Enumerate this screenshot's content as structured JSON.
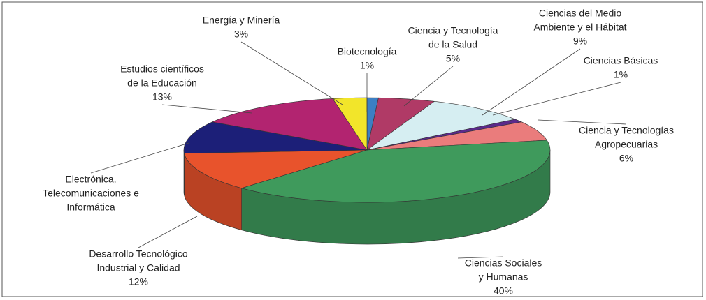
{
  "chart_data": {
    "type": "pie3d",
    "categories": [
      [
        "Biotecnología"
      ],
      [
        "Ciencia y Tecnología",
        "de la Salud"
      ],
      [
        "Ciencias del Medio",
        "Ambiente y el Hábitat"
      ],
      [
        "Ciencias Básicas"
      ],
      [
        "Ciencia y Tecnologías",
        "Agropecuarias"
      ],
      [
        "Ciencias Sociales",
        "y Humanas"
      ],
      [
        "Desarrollo Tecnológico",
        "Industrial y Calidad"
      ],
      [
        "Electrónica,",
        "Telecomunicaciones e",
        "Informática"
      ],
      [
        "Estudios científicos",
        "de la Educación"
      ],
      [
        "Energía y Minería"
      ]
    ],
    "values": [
      1,
      5,
      9,
      1,
      6,
      40,
      12,
      10,
      13,
      3
    ],
    "value_labels": [
      "1%",
      "5%",
      "9%",
      "1%",
      "6%",
      "40%",
      "12%",
      null,
      "13%",
      "3%"
    ],
    "colors": [
      "#3c7fc4",
      "#b03a66",
      "#d6eef2",
      "#5a2a8a",
      "#ea7c7c",
      "#3f9a5c",
      "#e8532c",
      "#1c1f78",
      "#b22470",
      "#f2e52a"
    ]
  }
}
